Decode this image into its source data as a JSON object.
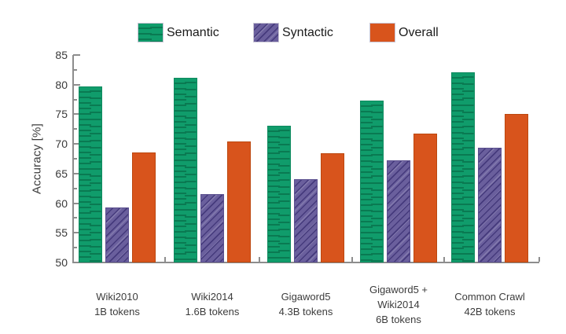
{
  "chart_data": {
    "type": "bar",
    "title": "",
    "ylabel": "Accuracy [%]",
    "xlabel": "",
    "ylim": [
      50,
      85
    ],
    "yticks": [
      50,
      55,
      60,
      65,
      70,
      75,
      80,
      85
    ],
    "minor_tick_interval": 2.5,
    "grid": false,
    "legend_position": "top",
    "axis_color": "#8d8d8d",
    "categories": [
      [
        "Wiki2010",
        "1B tokens"
      ],
      [
        "Wiki2014",
        "1.6B tokens"
      ],
      [
        "Gigaword5",
        "4.3B tokens"
      ],
      [
        "Gigaword5 +",
        "Wiki2014",
        "6B tokens"
      ],
      [
        "Common Crawl",
        "42B tokens"
      ]
    ],
    "series": [
      {
        "name": "Semantic",
        "pattern": "hlines",
        "color": "#109C6B",
        "stripe": "#0A7A52",
        "border": "#0E8A5F",
        "values": [
          79.7,
          81.1,
          73.1,
          77.3,
          82.1
        ]
      },
      {
        "name": "Syntactic",
        "pattern": "dlines",
        "color": "#6A5F9D",
        "stripe": "#453A7C",
        "border": "#5A4F8E",
        "values": [
          59.3,
          61.6,
          64.1,
          67.3,
          69.4
        ]
      },
      {
        "name": "Overall",
        "pattern": "solid",
        "color": "#D8541C",
        "stripe": "#D8541C",
        "border": "#BC480F",
        "values": [
          68.6,
          70.4,
          68.4,
          71.7,
          75.1
        ]
      }
    ]
  }
}
